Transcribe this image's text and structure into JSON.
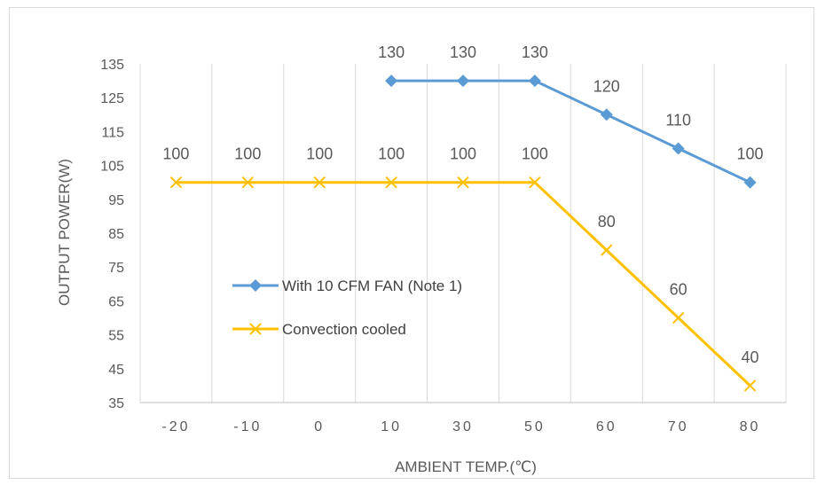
{
  "chart_data": {
    "type": "line",
    "title": "",
    "xlabel": "AMBIENT TEMP.(℃)",
    "ylabel": "OUTPUT POWER(W)",
    "categories": [
      "-20",
      "-10",
      "0",
      "10",
      "30",
      "50",
      "60",
      "70",
      "80"
    ],
    "ylim": [
      35,
      135
    ],
    "yticks": [
      35,
      45,
      55,
      65,
      75,
      85,
      95,
      105,
      115,
      125,
      135
    ],
    "grid": "vertical",
    "legend_position": "center-left",
    "series": [
      {
        "name": "With 10 CFM FAN (Note 1)",
        "color": "#5b9bd5",
        "marker": "diamond",
        "values": [
          null,
          null,
          null,
          130,
          130,
          130,
          120,
          110,
          100
        ]
      },
      {
        "name": "Convection cooled",
        "color": "#ffc000",
        "marker": "x",
        "values": [
          100,
          100,
          100,
          100,
          100,
          100,
          80,
          60,
          40
        ]
      }
    ]
  }
}
